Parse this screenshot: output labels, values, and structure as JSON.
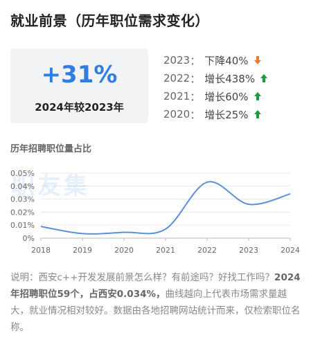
{
  "page": {
    "title": "就业前景（历年职位需求变化）",
    "summary": {
      "change": "+31%",
      "comparison": "2024年较2023年"
    },
    "yearly": [
      {
        "year": "2023",
        "sep": "：",
        "value": "下降40%",
        "direction": "down",
        "color": "#f07a2c",
        "icon": "arrow-down-icon"
      },
      {
        "year": "2022",
        "sep": "：",
        "value": "增长438%",
        "direction": "up",
        "color": "#1e9a3c",
        "icon": "arrow-up-icon"
      },
      {
        "year": "2021",
        "sep": "：",
        "value": "增长60%",
        "direction": "up",
        "color": "#1e9a3c",
        "icon": "arrow-up-icon"
      },
      {
        "year": "2020",
        "sep": "：",
        "value": "增长25%",
        "direction": "up",
        "color": "#1e9a3c",
        "icon": "arrow-up-icon"
      }
    ],
    "chart_title": "历年招聘职位量占比",
    "watermark": "职友集",
    "description": {
      "part1": "说明：西安c++开发发展前景怎么样？有前途吗？好找工作吗？",
      "bold": "2024年招聘职位59个，占西安0.034%，",
      "part2": "曲线越向上代表市场需求量越大，就业情况相对较好。数据由各地招聘网站统计而来，仅检索职位名称。"
    }
  },
  "chart_data": {
    "type": "line",
    "title": "历年招聘职位量占比",
    "x": [
      2018,
      2019,
      2020,
      2021,
      2022,
      2023,
      2024
    ],
    "x_tick_labels": [
      "2018",
      "2019",
      "2020",
      "2021",
      "2022",
      "2023",
      "2024"
    ],
    "y_tick_values": [
      0,
      0.01,
      0.02,
      0.03,
      0.04,
      0.05
    ],
    "y_tick_labels": [
      "0%",
      "0.01%",
      "0.02%",
      "0.03%",
      "0.04%",
      "0.05%"
    ],
    "series": [
      {
        "values": [
          0.009,
          0.0035,
          0.0045,
          0.007,
          0.043,
          0.026,
          0.034
        ]
      }
    ],
    "ylim": [
      0,
      0.05
    ],
    "grid": true,
    "line_color": "#5b8fd9",
    "smooth": true
  }
}
